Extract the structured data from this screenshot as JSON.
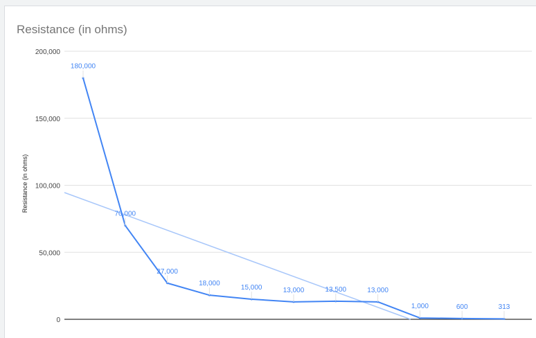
{
  "chart_data": {
    "type": "line",
    "title": "Resistance (in ohms)",
    "ylabel": "Resistance (in ohms)",
    "xlabel": "",
    "ylim": [
      0,
      200000
    ],
    "yticks": [
      0,
      50000,
      100000,
      150000,
      200000
    ],
    "ytick_labels": [
      "0",
      "50,000",
      "100,000",
      "150,000",
      "200,000"
    ],
    "grid": true,
    "legend": "none",
    "series": [
      {
        "values": [
          180000,
          70000,
          27000,
          18000,
          15000,
          13000,
          13500,
          13000,
          1000,
          600,
          313
        ],
        "labels": [
          "180,000",
          "70,000",
          "27,000",
          "18,000",
          "15,000",
          "13,000",
          "13,500",
          "13,000",
          "1,000",
          "600",
          "313"
        ],
        "color": "#4285f4"
      }
    ],
    "trendline": {
      "type": "linear",
      "color": "#a8c7fa"
    }
  }
}
